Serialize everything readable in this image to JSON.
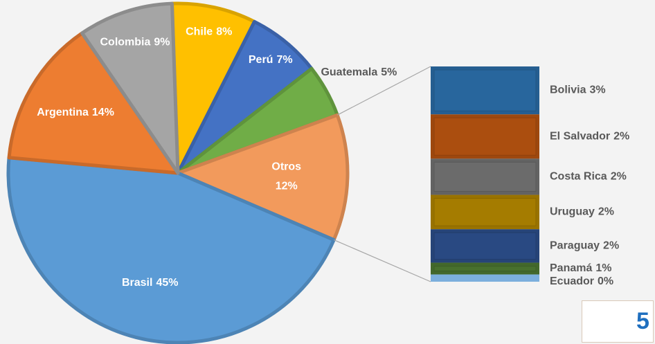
{
  "chart_data": {
    "type": "pie-of-bar",
    "categories": [
      "Chile",
      "Perú",
      "Guatemala",
      "Otros",
      "Brasil",
      "Argentina",
      "Colombia"
    ],
    "values": [
      8,
      7,
      5,
      12,
      45,
      14,
      9
    ],
    "value_labels": [
      "8%",
      "7%",
      "5%",
      "12%",
      "45%",
      "14%",
      "9%"
    ],
    "colors": [
      "#ffc000",
      "#4472c4",
      "#70ad47",
      "#f29a5c",
      "#5b9bd5",
      "#ed7d31",
      "#a5a5a5"
    ],
    "bar": {
      "categories": [
        "Bolivia",
        "El Salvador",
        "Costa Rica",
        "Uruguay",
        "Paraguay",
        "Panamá",
        "Ecuador"
      ],
      "values": [
        2.65,
        2.45,
        2.0,
        1.9,
        1.85,
        0.65,
        0.4
      ],
      "value_labels": [
        "3%",
        "2%",
        "2%",
        "2%",
        "2%",
        "1%",
        "0%"
      ],
      "colors": [
        "#255e91",
        "#9e480e",
        "#636363",
        "#997300",
        "#264478",
        "#43682b",
        "#7cafdd"
      ]
    }
  },
  "page_number": "5"
}
